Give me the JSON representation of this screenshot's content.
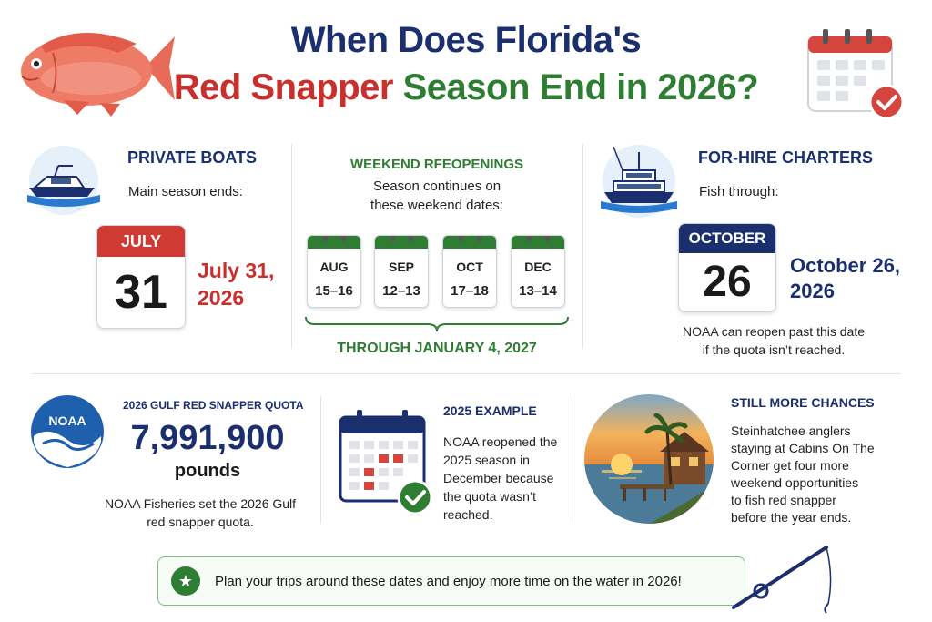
{
  "title": {
    "line1": "When Does Florida's",
    "line2_red": "Red Snapper",
    "line2_green": "Season End in 2026?"
  },
  "private_boats": {
    "heading": "PRIVATE BOATS",
    "subtext": "Main season ends:",
    "cal_month": "JULY",
    "cal_day": "31",
    "date_line1": "July 31,",
    "date_line2": "2026"
  },
  "weekend": {
    "heading": "WEEKEND RFEOPENINGS",
    "subtext_line1": "Season continues on",
    "subtext_line2": "these weekend dates:",
    "dates": [
      {
        "month": "AUG",
        "days": "15–16"
      },
      {
        "month": "SEP",
        "days": "12–13"
      },
      {
        "month": "OCT",
        "days": "17–18"
      },
      {
        "month": "DEC",
        "days": "13–14"
      }
    ],
    "through": "THROUGH JANUARY 4, 2027"
  },
  "for_hire": {
    "heading": "FOR-HIRE CHARTERS",
    "subtext": "Fish through:",
    "cal_month": "OCTOBER",
    "cal_day": "26",
    "date_line1": "October 26,",
    "date_line2": "2026",
    "note_line1": "NOAA can reopen past this date",
    "note_line2": "if the quota isn’t reached."
  },
  "quota": {
    "logo_text": "NOAA",
    "heading": "2026 GULF RED SNAPPER QUOTA",
    "value": "7,991,900",
    "unit": "pounds",
    "note_line1": "NOAA Fisheries set the 2026 Gulf",
    "note_line2": "red snapper quota."
  },
  "example": {
    "heading": "2025 EXAMPLE",
    "lines": [
      "NOAA reopened the",
      "2025 season in",
      "December because",
      "the quota wasn’t",
      "reached."
    ]
  },
  "chances": {
    "heading": "STILL MORE CHANCES",
    "lines": [
      "Steinhatchee anglers",
      "staying at Cabins On The",
      "Corner get four more",
      "weekend opportunities",
      "to fish red snapper",
      "before the year ends."
    ]
  },
  "footer": {
    "text": "Plan your trips around these dates and enjoy more time on the water in 2026!"
  },
  "colors": {
    "navy": "#1b2f6e",
    "red": "#c8302e",
    "green": "#2e7d32"
  },
  "icons": [
    "red-snapper-fish-icon",
    "calendar-check-icon",
    "boat-icon",
    "charter-boat-icon",
    "noaa-logo-icon",
    "calendar-marked-icon",
    "sunset-cabin-icon",
    "star-icon",
    "fishing-rod-icon"
  ]
}
